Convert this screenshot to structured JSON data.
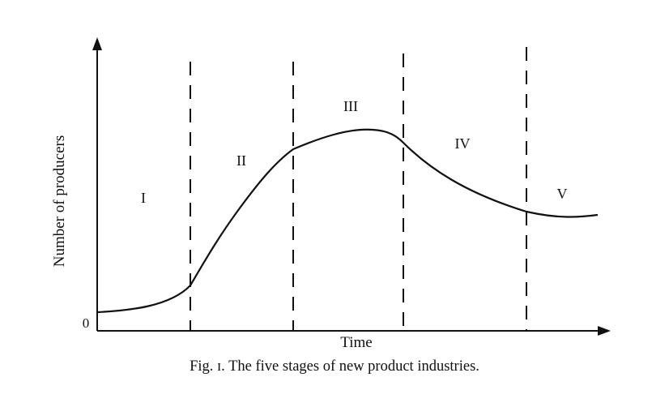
{
  "figure": {
    "caption": "Fig. ɪ. The five stages of new product industries.",
    "y_axis_label": "Number of producers",
    "x_axis_label": "Time",
    "origin_label": "0",
    "stages": [
      "I",
      "II",
      "III",
      "IV",
      "V"
    ]
  },
  "colors": {
    "ink": "#111111",
    "background": "#ffffff"
  }
}
